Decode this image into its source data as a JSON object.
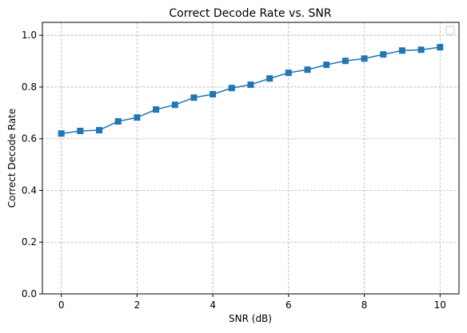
{
  "chart_data": {
    "type": "line",
    "title": "Correct Decode Rate vs. SNR",
    "x_label": "SNR (dB)",
    "y_label": "Correct Decode Rate",
    "x": [
      0,
      0.5,
      1,
      1.5,
      2,
      2.5,
      3,
      3.5,
      4,
      4.5,
      5,
      5.5,
      6,
      6.5,
      7,
      7.5,
      8,
      8.5,
      9,
      9.5,
      10
    ],
    "series": [
      {
        "color": "#1f77b4",
        "values": [
          0.62,
          0.63,
          0.633,
          0.667,
          0.682,
          0.713,
          0.731,
          0.759,
          0.772,
          0.796,
          0.809,
          0.833,
          0.855,
          0.867,
          0.886,
          0.901,
          0.91,
          0.926,
          0.941,
          0.944,
          0.954
        ]
      }
    ],
    "xlim": [
      -0.5,
      10.5
    ],
    "ylim": [
      0,
      1.05
    ],
    "xticks": [
      0,
      2,
      4,
      6,
      8,
      10
    ],
    "yticks": [
      {
        "value": 0,
        "label": "0.0"
      },
      0.2,
      0.4,
      0.6,
      0.8,
      {
        "value": 1,
        "label": "1.0"
      }
    ],
    "grid": true
  }
}
